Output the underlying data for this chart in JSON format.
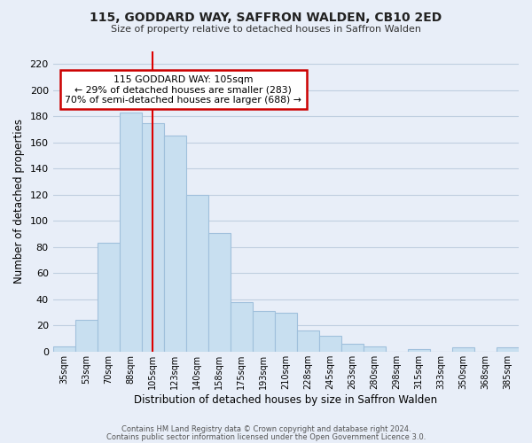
{
  "title": "115, GODDARD WAY, SAFFRON WALDEN, CB10 2ED",
  "subtitle": "Size of property relative to detached houses in Saffron Walden",
  "xlabel": "Distribution of detached houses by size in Saffron Walden",
  "ylabel": "Number of detached properties",
  "bar_labels": [
    "35sqm",
    "53sqm",
    "70sqm",
    "88sqm",
    "105sqm",
    "123sqm",
    "140sqm",
    "158sqm",
    "175sqm",
    "193sqm",
    "210sqm",
    "228sqm",
    "245sqm",
    "263sqm",
    "280sqm",
    "298sqm",
    "315sqm",
    "333sqm",
    "350sqm",
    "368sqm",
    "385sqm"
  ],
  "bar_values": [
    4,
    24,
    83,
    183,
    175,
    165,
    120,
    91,
    38,
    31,
    30,
    16,
    12,
    6,
    4,
    0,
    2,
    0,
    3,
    0,
    3
  ],
  "bar_color": "#c8dff0",
  "bar_edge_color": "#a0c0dc",
  "vline_index": 4,
  "vline_color": "#dd0000",
  "ylim": [
    0,
    230
  ],
  "yticks": [
    0,
    20,
    40,
    60,
    80,
    100,
    120,
    140,
    160,
    180,
    200,
    220
  ],
  "annotation_title": "115 GODDARD WAY: 105sqm",
  "annotation_line1": "← 29% of detached houses are smaller (283)",
  "annotation_line2": "70% of semi-detached houses are larger (688) →",
  "annotation_box_color": "#ffffff",
  "annotation_box_edge": "#cc0000",
  "footer1": "Contains HM Land Registry data © Crown copyright and database right 2024.",
  "footer2": "Contains public sector information licensed under the Open Government Licence 3.0.",
  "bg_color": "#e8eef8",
  "plot_bg_color": "#e8eef8",
  "grid_color": "#c0cfe0"
}
